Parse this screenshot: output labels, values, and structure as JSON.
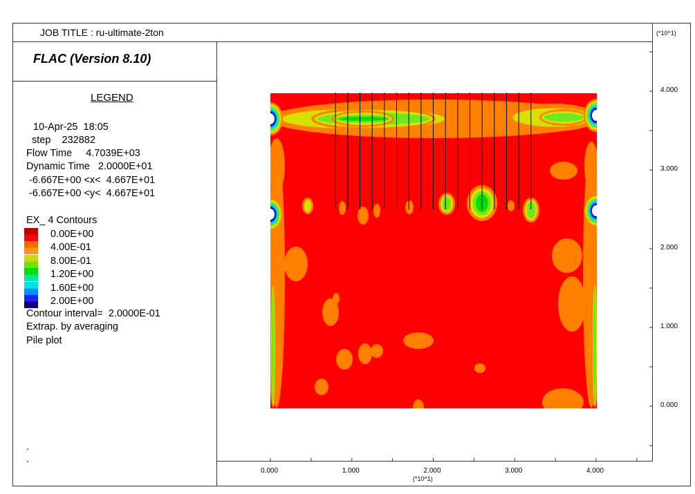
{
  "header": {
    "job_title": "JOB TITLE : ru-ultimate-2ton",
    "program": "FLAC (Version 8.10)"
  },
  "legend": {
    "title": "LEGEND",
    "date_time": "10-Apr-25  18:05",
    "step": "step    232882",
    "flow_time": "Flow Time     4.7039E+03",
    "dynamic_time": "Dynamic Time   2.0000E+01",
    "x_range": " -6.667E+00 <x<  4.667E+01",
    "y_range": " -6.667E+00 <y<  4.667E+01",
    "contour_title": "EX_ 4 Contours",
    "contour_levels": [
      {
        "label": "0.00E+00",
        "colors": [
          "#c00000",
          "#ff0000"
        ]
      },
      {
        "label": "4.00E-01",
        "colors": [
          "#ff6a00",
          "#ff9a00"
        ]
      },
      {
        "label": "8.00E-01",
        "colors": [
          "#d0d800",
          "#70e000"
        ]
      },
      {
        "label": "1.20E+00",
        "colors": [
          "#00e000",
          "#00e8a0"
        ]
      },
      {
        "label": "1.60E+00",
        "colors": [
          "#00e0f0",
          "#0090ff"
        ]
      },
      {
        "label": "2.00E+00",
        "colors": [
          "#2020ff",
          "#000080"
        ]
      }
    ],
    "contour_interval": "Contour interval=  2.0000E-01",
    "extrapolation": "Extrap. by averaging",
    "pile_plot": "Pile plot",
    "dots": [
      ".",
      "."
    ]
  },
  "chart_data": {
    "type": "heatmap",
    "variable": "EX_ 4",
    "contour_levels": [
      0.0,
      0.4,
      0.8,
      1.2,
      1.6,
      2.0
    ],
    "contour_interval": 0.2,
    "xlim": [
      -6.667,
      46.67
    ],
    "ylim": [
      -6.667,
      46.67
    ],
    "grid_extent": {
      "x": [
        0,
        40
      ],
      "y": [
        0,
        40
      ]
    },
    "x_axis": {
      "ticks": [
        "0.000",
        "1.000",
        "2.000",
        "3.000",
        "4.000"
      ],
      "multiplier": "(*10^1)"
    },
    "y_axis": {
      "ticks": [
        "0.000",
        "1.000",
        "2.000",
        "3.000",
        "4.000"
      ],
      "multiplier": "(*10^1)"
    },
    "piles": {
      "x": [
        8,
        9.5,
        11,
        12.5,
        14,
        15.5,
        17,
        18.5,
        20,
        21.5,
        23,
        24.5,
        26,
        27.5,
        29,
        30.5,
        32
      ],
      "y_top": 40,
      "y_bottom": 25
    },
    "colors": {
      "c0": "#ff0000",
      "c1": "#ff8000",
      "c2": "#d8e000",
      "c3": "#70e820",
      "c4": "#00e000",
      "c5": "#00e0e0",
      "c6": "#0060ff",
      "c7": "#0000b0"
    }
  }
}
